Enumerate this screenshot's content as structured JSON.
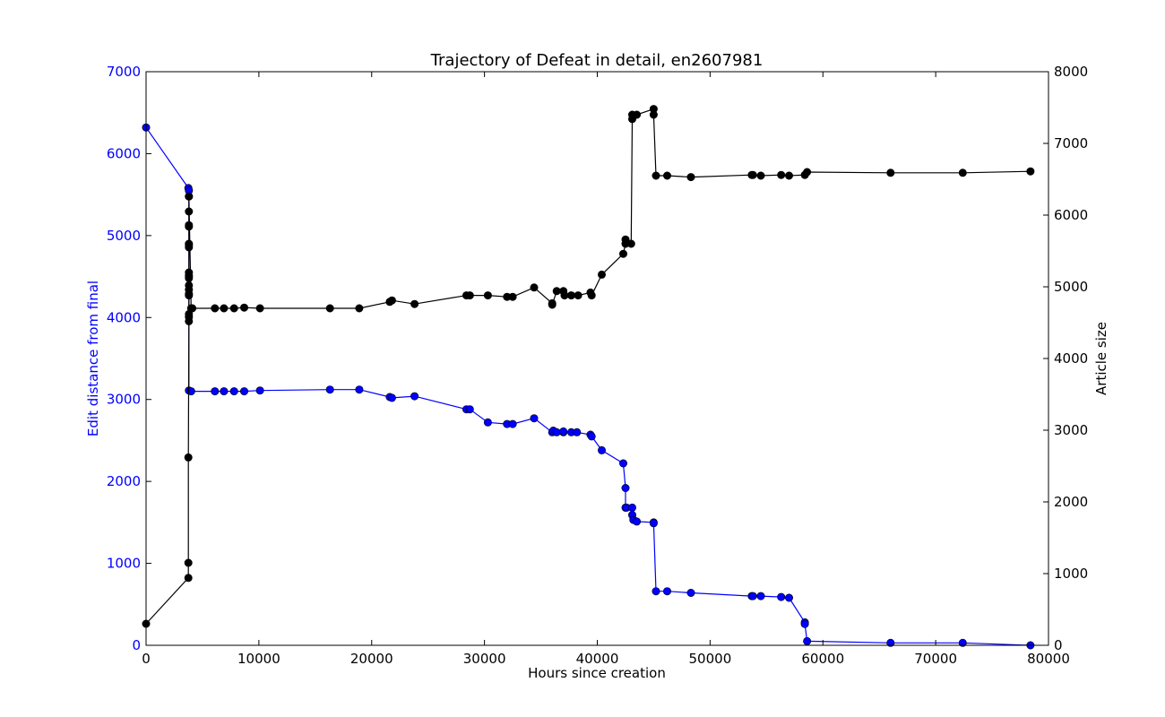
{
  "chart_data": {
    "type": "line",
    "title": "Trajectory of Defeat in detail, en2607981",
    "xlabel": "Hours since creation",
    "ylabel_left": "Edit distance from final",
    "ylabel_right": "Article size",
    "xlim": [
      0,
      80000
    ],
    "ylim_left": [
      0,
      7000
    ],
    "ylim_right": [
      0,
      8000
    ],
    "xticks": [
      0,
      10000,
      20000,
      30000,
      40000,
      50000,
      60000,
      70000,
      80000
    ],
    "yticks_left": [
      0,
      1000,
      2000,
      3000,
      4000,
      5000,
      6000,
      7000
    ],
    "yticks_right": [
      0,
      1000,
      2000,
      3000,
      4000,
      5000,
      6000,
      7000,
      8000
    ],
    "grid": false,
    "colors": {
      "left_axis": "#0000ff",
      "edit_series": "#0000ff",
      "size_series": "#000000",
      "text": "#000000"
    },
    "series": [
      {
        "axis": "left",
        "x": [
          0,
          3750,
          3800,
          3800,
          4000,
          6100,
          6900,
          7800,
          8700,
          10100,
          16300,
          18900,
          21600,
          21800,
          23800,
          28400,
          28700,
          30300,
          32000,
          32500,
          34400,
          36000,
          36100,
          36400,
          37000,
          37000,
          37700,
          38200,
          39400,
          39500,
          40400,
          42300,
          42500,
          42500,
          42600,
          43100,
          43100,
          43200,
          43500,
          45000,
          45000,
          45200,
          46200,
          48300,
          53700,
          53800,
          54500,
          56300,
          57000,
          58400,
          58400,
          58600,
          66000,
          72400,
          78400
        ],
        "y": [
          6320,
          5580,
          5550,
          3110,
          3100,
          3100,
          3100,
          3100,
          3100,
          3110,
          3120,
          3120,
          3030,
          3020,
          3040,
          2880,
          2880,
          2720,
          2700,
          2700,
          2770,
          2600,
          2620,
          2600,
          2600,
          2610,
          2600,
          2600,
          2570,
          2550,
          2380,
          2220,
          1920,
          1680,
          1680,
          1680,
          1590,
          1530,
          1510,
          1500,
          1490,
          660,
          660,
          640,
          600,
          600,
          600,
          590,
          580,
          280,
          260,
          50,
          30,
          30,
          0
        ]
      },
      {
        "axis": "right",
        "x": [
          0,
          3750,
          3750,
          3750,
          3800,
          3800,
          3800,
          3800,
          3800,
          3800,
          3800,
          3800,
          3800,
          3800,
          3800,
          3800,
          3800,
          3800,
          3800,
          3800,
          3800,
          3800,
          3800,
          4000,
          4100,
          6100,
          6900,
          7800,
          8700,
          10100,
          16300,
          18900,
          21600,
          21800,
          23800,
          28400,
          28700,
          30300,
          32000,
          32500,
          34400,
          36000,
          36000,
          36400,
          37000,
          37100,
          37700,
          38300,
          39400,
          39500,
          40400,
          42300,
          42500,
          42500,
          43000,
          43100,
          43100,
          43200,
          43500,
          45000,
          45000,
          45200,
          46200,
          48300,
          53700,
          53800,
          54500,
          56300,
          57000,
          58400,
          58600,
          66000,
          72400,
          78400
        ],
        "y": [
          300,
          940,
          1150,
          2620,
          4520,
          4580,
          4620,
          4880,
          4900,
          4960,
          5020,
          5120,
          5140,
          5160,
          5200,
          5550,
          5580,
          5600,
          5840,
          5860,
          6050,
          6260,
          6260,
          4700,
          4700,
          4700,
          4700,
          4700,
          4710,
          4700,
          4700,
          4700,
          4790,
          4810,
          4760,
          4880,
          4880,
          4880,
          4860,
          4860,
          4990,
          4770,
          4750,
          4940,
          4940,
          4880,
          4880,
          4880,
          4920,
          4880,
          5170,
          5460,
          5600,
          5660,
          5600,
          7340,
          7400,
          7390,
          7400,
          7480,
          7400,
          6550,
          6550,
          6530,
          6560,
          6560,
          6550,
          6560,
          6550,
          6560,
          6600,
          6590,
          6590,
          6610
        ]
      }
    ]
  }
}
